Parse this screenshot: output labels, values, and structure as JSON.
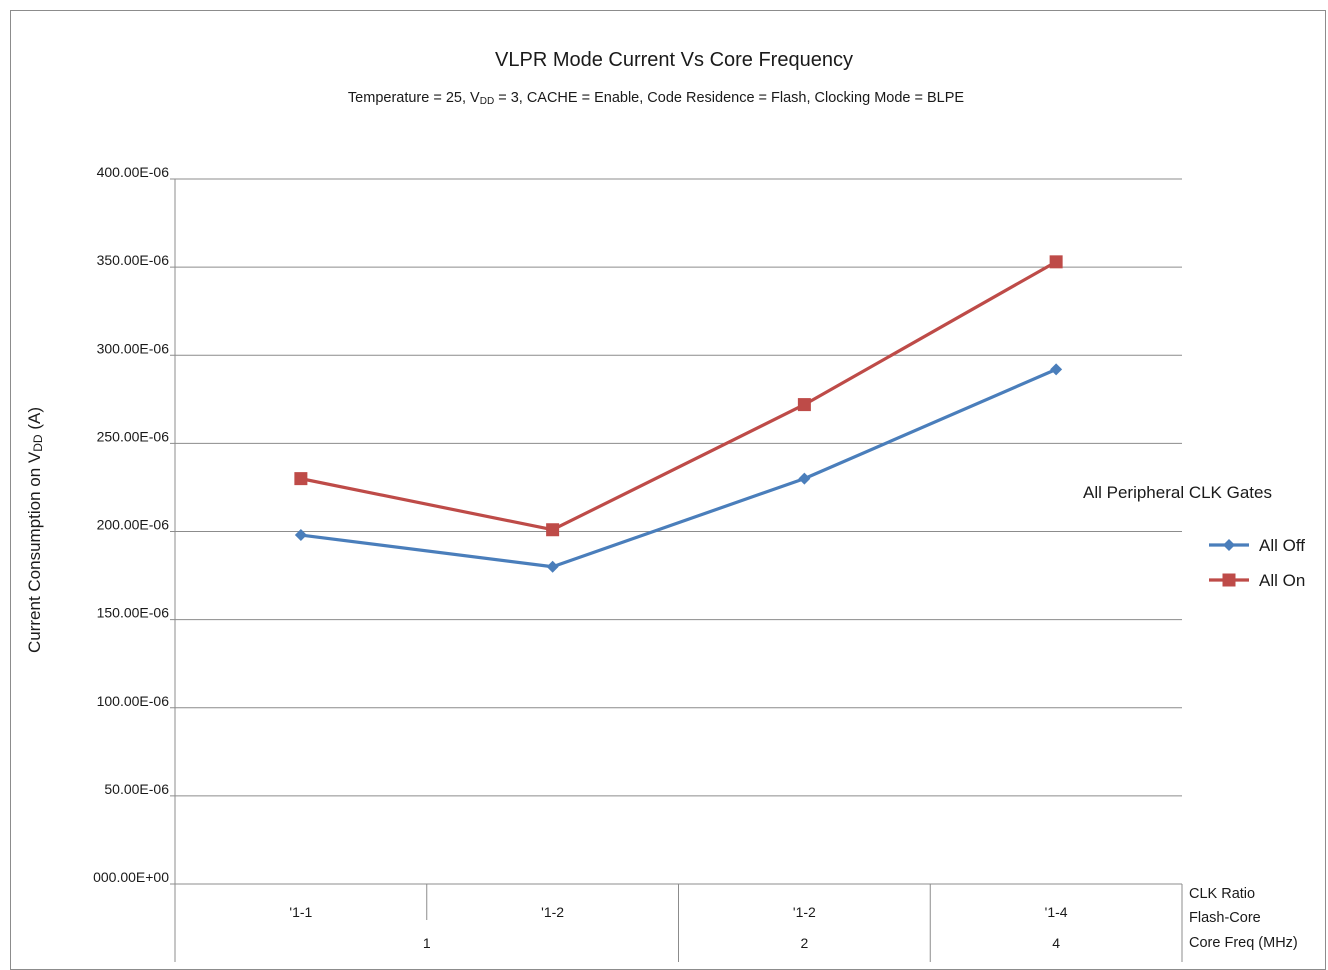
{
  "chart_data": {
    "type": "line",
    "title": "VLPR Mode Current Vs Core Frequency",
    "subtitle": {
      "pre": "Temperature = 25, V",
      "sub": "DD",
      "post": " = 3, CACHE = Enable, Code Residence = Flash, Clocking Mode = BLPE"
    },
    "ylabel": {
      "pre": "Current Consumption on V",
      "sub": "DD",
      "post": " (A)"
    },
    "ylim": [
      0,
      0.0004
    ],
    "yticks": [
      {
        "value": 0.0004,
        "label": "400.00E-06"
      },
      {
        "value": 0.00035,
        "label": "350.00E-06"
      },
      {
        "value": 0.0003,
        "label": "300.00E-06"
      },
      {
        "value": 0.00025,
        "label": "250.00E-06"
      },
      {
        "value": 0.0002,
        "label": "200.00E-06"
      },
      {
        "value": 0.00015,
        "label": "150.00E-06"
      },
      {
        "value": 0.0001,
        "label": "100.00E-06"
      },
      {
        "value": 5e-05,
        "label": "50.00E-06"
      },
      {
        "value": 0,
        "label": "000.00E+00"
      }
    ],
    "categories": [
      "'1-1",
      "'1-2",
      "'1-2",
      "'1-4"
    ],
    "groups": [
      {
        "label": "1",
        "span": 2
      },
      {
        "label": "2",
        "span": 1
      },
      {
        "label": "4",
        "span": 1
      }
    ],
    "axis_titles": [
      "CLK Ratio",
      "Flash-Core",
      "Core Freq (MHz)"
    ],
    "legend": {
      "title": "All Peripheral CLK Gates",
      "placement": "right"
    },
    "series": [
      {
        "name": "All Off",
        "color": "#4a7ebb",
        "marker": "diamond",
        "values": [
          0.000198,
          0.00018,
          0.00023,
          0.000292
        ]
      },
      {
        "name": "All On",
        "color": "#be4b48",
        "marker": "square",
        "values": [
          0.00023,
          0.000201,
          0.000272,
          0.000353
        ]
      }
    ],
    "grid": true
  }
}
